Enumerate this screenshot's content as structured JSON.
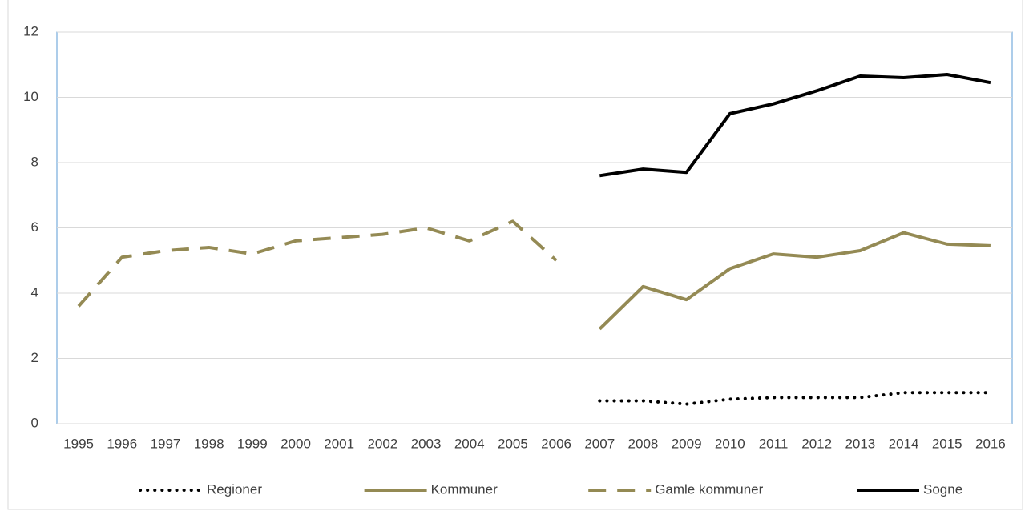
{
  "chart_data": {
    "type": "line",
    "categories": [
      "1995",
      "1996",
      "1997",
      "1998",
      "1999",
      "2000",
      "2001",
      "2002",
      "2003",
      "2004",
      "2005",
      "2006",
      "2007",
      "2008",
      "2009",
      "2010",
      "2011",
      "2012",
      "2013",
      "2014",
      "2015",
      "2016"
    ],
    "series": [
      {
        "name": "Regioner",
        "color": "#000000",
        "style": "dotted",
        "values": [
          null,
          null,
          null,
          null,
          null,
          null,
          null,
          null,
          null,
          null,
          null,
          null,
          0.7,
          0.7,
          0.6,
          0.75,
          0.8,
          0.8,
          0.8,
          0.95,
          0.95,
          0.95
        ]
      },
      {
        "name": "Kommuner",
        "color": "#948a54",
        "style": "solid",
        "values": [
          null,
          null,
          null,
          null,
          null,
          null,
          null,
          null,
          null,
          null,
          null,
          null,
          2.9,
          4.2,
          3.8,
          4.75,
          5.2,
          5.1,
          5.3,
          5.85,
          5.5,
          5.45
        ]
      },
      {
        "name": "Gamle kommuner",
        "color": "#948a54",
        "style": "dashed",
        "values": [
          3.6,
          5.1,
          5.3,
          5.4,
          5.2,
          5.6,
          5.7,
          5.8,
          6.0,
          5.6,
          6.2,
          5.0,
          null,
          null,
          null,
          null,
          null,
          null,
          null,
          null,
          null,
          null
        ]
      },
      {
        "name": "Sogne",
        "color": "#000000",
        "style": "solid",
        "values": [
          null,
          null,
          null,
          null,
          null,
          null,
          null,
          null,
          null,
          null,
          null,
          null,
          7.6,
          7.8,
          7.7,
          9.5,
          9.8,
          10.2,
          10.65,
          10.6,
          10.7,
          10.45
        ]
      }
    ],
    "ylim": [
      0,
      12
    ],
    "yticks": [
      0,
      2,
      4,
      6,
      8,
      10,
      12
    ],
    "grid": true,
    "legend": "bottom"
  }
}
